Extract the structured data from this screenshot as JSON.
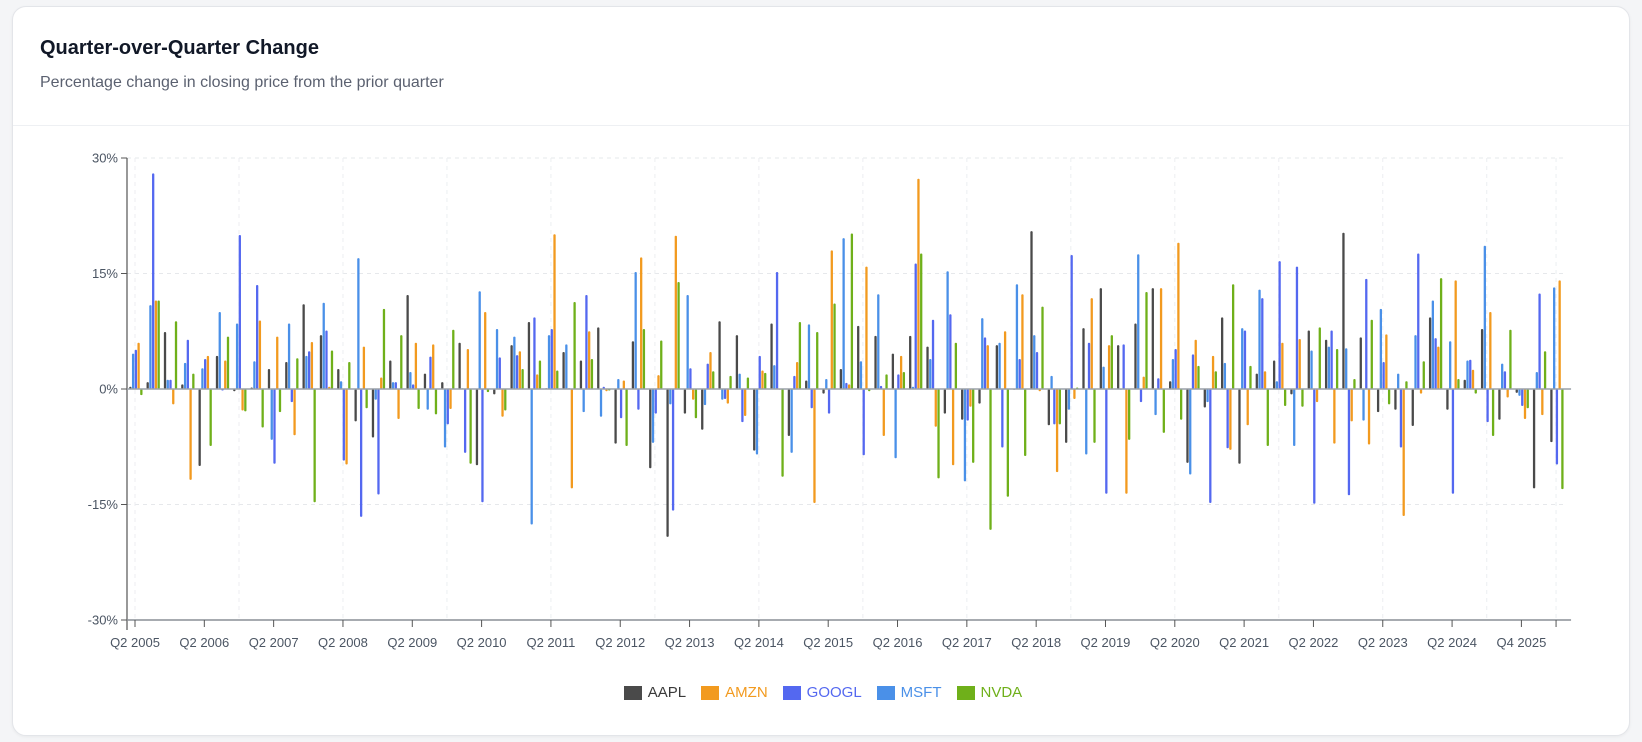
{
  "header": {
    "title": "Quarter-over-Quarter Change",
    "subtitle": "Percentage change in closing price from the prior quarter"
  },
  "chart_data": {
    "type": "bar",
    "title": "Quarter-over-Quarter Change",
    "subtitle": "Percentage change in closing price from the prior quarter",
    "xlabel": "",
    "ylabel": "",
    "ylim": [
      -30,
      30
    ],
    "y_unit": "%",
    "y_ticks": [
      30,
      15,
      0,
      -15,
      -30
    ],
    "y_tick_labels": [
      "30%",
      "15%",
      "0%",
      "-15%",
      "-30%"
    ],
    "grid": true,
    "legend_position": "bottom",
    "x_tick_labels": [
      "Q2 2005",
      "Q2 2006",
      "Q2 2007",
      "Q2 2008",
      "Q2 2009",
      "Q2 2010",
      "Q2 2011",
      "Q2 2012",
      "Q2 2013",
      "Q2 2014",
      "Q2 2015",
      "Q2 2016",
      "Q2 2017",
      "Q2 2018",
      "Q2 2019",
      "Q2 2020",
      "Q2 2021",
      "Q2 2022",
      "Q2 2023",
      "Q2 2024",
      "Q4 2025"
    ],
    "categories": [
      "Q2 2005",
      "Q3 2005",
      "Q4 2005",
      "Q1 2006",
      "Q2 2006",
      "Q3 2006",
      "Q4 2006",
      "Q1 2007",
      "Q2 2007",
      "Q3 2007",
      "Q4 2007",
      "Q1 2008",
      "Q2 2008",
      "Q3 2008",
      "Q4 2008",
      "Q1 2009",
      "Q2 2009",
      "Q3 2009",
      "Q4 2009",
      "Q1 2010",
      "Q2 2010",
      "Q3 2010",
      "Q4 2010",
      "Q1 2011",
      "Q2 2011",
      "Q3 2011",
      "Q4 2011",
      "Q1 2012",
      "Q2 2012",
      "Q3 2012",
      "Q4 2012",
      "Q1 2013",
      "Q2 2013",
      "Q3 2013",
      "Q4 2013",
      "Q1 2014",
      "Q2 2014",
      "Q3 2014",
      "Q4 2014",
      "Q1 2015",
      "Q2 2015",
      "Q3 2015",
      "Q4 2015",
      "Q1 2016",
      "Q2 2016",
      "Q3 2016",
      "Q4 2016",
      "Q1 2017",
      "Q2 2017",
      "Q3 2017",
      "Q4 2017",
      "Q1 2018",
      "Q2 2018",
      "Q3 2018",
      "Q4 2018",
      "Q1 2019",
      "Q2 2019",
      "Q3 2019",
      "Q4 2019",
      "Q1 2020",
      "Q2 2020",
      "Q3 2020",
      "Q4 2020",
      "Q1 2021",
      "Q2 2021",
      "Q3 2021",
      "Q4 2021",
      "Q1 2022",
      "Q2 2022",
      "Q3 2022",
      "Q4 2022",
      "Q1 2023",
      "Q2 2023",
      "Q3 2023",
      "Q4 2023",
      "Q1 2024",
      "Q2 2024",
      "Q3 2024",
      "Q4 2024",
      "Q1 2025",
      "Q2 2025",
      "Q3 2025",
      "Q4 2025"
    ],
    "series": [
      {
        "name": "AAPL",
        "color": "#4a4a4a",
        "values": [
          0.3,
          0.9,
          7.4,
          0.6,
          -10.0,
          4.3,
          -0.3,
          0.2,
          2.6,
          3.5,
          11.0,
          7.0,
          2.6,
          -4.2,
          -6.3,
          3.7,
          12.2,
          2.0,
          0.9,
          6.0,
          -9.9,
          -0.7,
          5.7,
          8.7,
          0.1,
          4.8,
          3.7,
          8.0,
          -7.1,
          6.2,
          -10.3,
          -19.2,
          -3.2,
          -5.3,
          8.8,
          7.0,
          -8.0,
          8.5,
          -6.1,
          1.1,
          -0.6,
          2.6,
          8.2,
          6.9,
          4.6,
          6.9,
          5.5,
          -3.2,
          -4.0,
          -1.9,
          5.7,
          -0.1,
          20.5,
          -4.7,
          -7.0,
          7.9,
          13.1,
          5.7,
          8.5,
          13.1,
          1.0,
          -9.6,
          -2.4,
          9.3,
          -9.7,
          2.0,
          3.7,
          -0.7,
          7.6,
          6.4,
          20.3,
          6.7,
          -3.0,
          -2.7,
          -4.8,
          9.3,
          -2.7,
          1.2,
          7.8,
          -4.0,
          -0.5,
          -12.9,
          -6.9
        ]
      },
      {
        "name": "AMZN",
        "color": "#f29a1f",
        "values": [
          6.0,
          11.5,
          -2.0,
          -11.8,
          4.3,
          3.7,
          -2.8,
          8.9,
          6.8,
          -6.0,
          6.1,
          0.3,
          -9.8,
          5.5,
          1.5,
          -3.9,
          6.0,
          5.8,
          -2.6,
          5.2,
          10.0,
          -3.6,
          4.9,
          1.9,
          20.1,
          -12.9,
          7.5,
          -0.3,
          1.1,
          17.1,
          1.8,
          19.9,
          -1.4,
          4.8,
          -1.9,
          -3.5,
          2.4,
          -0.1,
          3.5,
          -14.8,
          18.0,
          0.6,
          15.9,
          -6.1,
          4.3,
          27.3,
          -4.9,
          -9.9,
          -2.3,
          5.7,
          7.5,
          12.3,
          -0.3,
          -10.8,
          -1.3,
          11.8,
          5.7,
          -13.6,
          1.6,
          13.1,
          19.0,
          6.4,
          4.3,
          -7.9,
          -4.7,
          2.3,
          6.0,
          6.5,
          -1.7,
          -7.1,
          -4.2,
          -7.2,
          7.1,
          -16.5,
          -0.6,
          5.5,
          14.1,
          2.5,
          10.0,
          -1.1,
          -3.9,
          -3.4,
          14.1
        ]
      },
      {
        "name": "GOOGL",
        "color": "#5468f0",
        "values": [
          5.1,
          28.0,
          1.2,
          6.4,
          3.9,
          -0.2,
          20.0,
          13.5,
          -9.7,
          -1.7,
          4.9,
          7.6,
          -9.3,
          -16.6,
          -13.7,
          0.9,
          0.6,
          4.2,
          -4.6,
          -8.3,
          -14.7,
          4.1,
          4.4,
          9.3,
          7.8,
          0.1,
          12.2,
          0.3,
          -3.8,
          -2.7,
          -3.2,
          -15.8,
          2.7,
          3.3,
          -1.3,
          -4.3,
          4.3,
          15.2,
          1.7,
          -2.5,
          -3.2,
          0.8,
          -8.6,
          0.4,
          1.9,
          16.3,
          9.0,
          9.7,
          -4.1,
          6.7,
          -7.6,
          3.9,
          4.8,
          -4.6,
          17.4,
          6.0,
          -13.6,
          5.8,
          -1.7,
          1.4,
          5.2,
          4.5,
          -14.8,
          -7.7,
          7.6,
          11.8,
          16.6,
          15.9,
          -14.9,
          7.6,
          -13.8,
          14.3,
          3.5,
          -7.6,
          17.6,
          6.6,
          -13.6,
          3.8,
          -4.3,
          2.3,
          -2.2,
          12.4,
          -9.8
        ]
      },
      {
        "name": "MSFT",
        "color": "#4a90e8",
        "values": [
          4.6,
          10.9,
          1.2,
          3.4,
          2.7,
          10.0,
          8.5,
          3.6,
          -6.6,
          8.5,
          4.3,
          11.2,
          1.0,
          17.0,
          -1.4,
          0.9,
          2.2,
          -2.7,
          -7.6,
          0.1,
          12.7,
          7.8,
          6.8,
          -17.6,
          7.0,
          5.8,
          -3.0,
          -3.6,
          1.3,
          15.2,
          -7.0,
          -2.0,
          12.2,
          -2.1,
          -1.4,
          2.0,
          -8.5,
          3.1,
          -8.3,
          8.4,
          1.3,
          19.6,
          3.6,
          12.3,
          -9.0,
          0.3,
          3.9,
          15.3,
          -12.0,
          9.2,
          6.0,
          13.6,
          7.0,
          1.7,
          -2.7,
          -8.5,
          2.9,
          -0.1,
          17.5,
          -3.4,
          3.9,
          -11.1,
          -1.7,
          3.4,
          7.9,
          12.9,
          1.0,
          -7.4,
          5.0,
          5.5,
          5.3,
          -4.1,
          10.4,
          2.0,
          7.0,
          11.5,
          6.2,
          3.7,
          18.6,
          3.3,
          -0.9,
          2.2,
          13.2
        ]
      },
      {
        "name": "NVDA",
        "color": "#6fb01a",
        "values": [
          -0.8,
          11.5,
          8.8,
          2.0,
          -7.4,
          6.8,
          -2.9,
          -5.0,
          -3.0,
          4.0,
          -14.7,
          5.0,
          3.5,
          -2.5,
          10.4,
          7.0,
          -2.6,
          -3.3,
          7.7,
          -9.7,
          -0.4,
          -2.8,
          2.6,
          3.7,
          2.4,
          11.3,
          3.9,
          -0.2,
          -7.4,
          7.8,
          6.3,
          13.9,
          -3.8,
          2.3,
          1.7,
          1.5,
          2.1,
          -11.4,
          8.7,
          7.4,
          11.1,
          20.2,
          -0.3,
          1.9,
          2.2,
          17.6,
          -11.6,
          6.0,
          -9.6,
          -18.3,
          -14.0,
          -8.7,
          10.7,
          -4.6,
          0.2,
          -7.0,
          7.0,
          -6.6,
          12.6,
          -5.7,
          -4.0,
          3.0,
          2.3,
          13.6,
          3.0,
          -7.4,
          -2.2,
          -2.3,
          8.0,
          5.2,
          1.3,
          9.0,
          -2.0,
          1.0,
          3.6,
          14.4,
          1.3,
          -0.6,
          -6.1,
          7.7,
          -2.5,
          4.9,
          -13.0
        ]
      }
    ]
  },
  "legend": {
    "items": [
      {
        "label": "AAPL",
        "color": "#4a4a4a",
        "text_color": "#3a3a3a"
      },
      {
        "label": "AMZN",
        "color": "#f29a1f",
        "text_color": "#f29a1f"
      },
      {
        "label": "GOOGL",
        "color": "#5468f0",
        "text_color": "#5468f0"
      },
      {
        "label": "MSFT",
        "color": "#4a90e8",
        "text_color": "#4a90e8"
      },
      {
        "label": "NVDA",
        "color": "#6fb01a",
        "text_color": "#6fb01a"
      }
    ]
  }
}
